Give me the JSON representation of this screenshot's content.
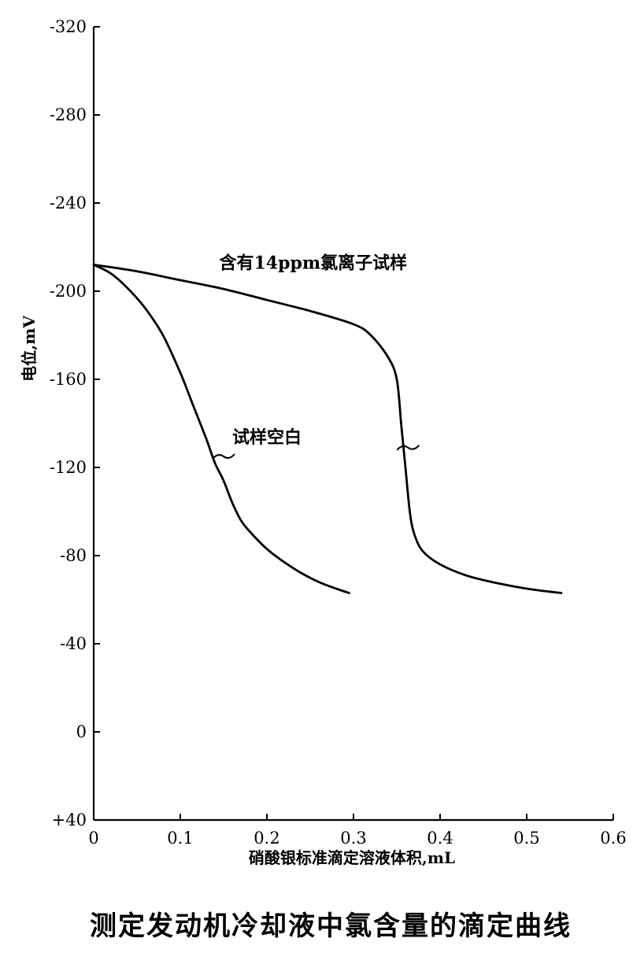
{
  "chart_data": {
    "type": "line",
    "title": "测定发动机冷却液中氯含量的滴定曲线",
    "xlabel": "硝酸银标准滴定溶液体积,mL",
    "ylabel": "电位,mV",
    "xlim": [
      0,
      0.6
    ],
    "ylim": [
      40,
      -320
    ],
    "y_axis_inverted": true,
    "grid": false,
    "x_ticks": [
      {
        "value": 0,
        "label": "0"
      },
      {
        "value": 0.1,
        "label": "0.1"
      },
      {
        "value": 0.2,
        "label": "0.2"
      },
      {
        "value": 0.3,
        "label": "0.3"
      },
      {
        "value": 0.4,
        "label": "0.4"
      },
      {
        "value": 0.5,
        "label": "0.5"
      },
      {
        "value": 0.6,
        "label": "0.6"
      }
    ],
    "y_ticks": [
      {
        "value": -320,
        "label": "-320"
      },
      {
        "value": -280,
        "label": "-280"
      },
      {
        "value": -240,
        "label": "-240"
      },
      {
        "value": -200,
        "label": "-200"
      },
      {
        "value": -160,
        "label": "-160"
      },
      {
        "value": -120,
        "label": "-120"
      },
      {
        "value": -80,
        "label": "-80"
      },
      {
        "value": -40,
        "label": "-40"
      },
      {
        "value": 0,
        "label": "0"
      },
      {
        "value": 40,
        "label": "+40"
      }
    ],
    "series": [
      {
        "name": "试样空白",
        "x": [
          0,
          0.02,
          0.04,
          0.06,
          0.08,
          0.1,
          0.115,
          0.13,
          0.14,
          0.15,
          0.16,
          0.17,
          0.18,
          0.2,
          0.22,
          0.24,
          0.26,
          0.28,
          0.295
        ],
        "y": [
          -212,
          -208,
          -201,
          -192,
          -180,
          -163,
          -148,
          -133,
          -122,
          -114,
          -104,
          -96,
          -91,
          -83,
          -77,
          -72,
          -68,
          -65,
          -63
        ]
      },
      {
        "name": "含有14ppm氯离子试样",
        "x": [
          0,
          0.05,
          0.1,
          0.15,
          0.2,
          0.25,
          0.3,
          0.32,
          0.34,
          0.35,
          0.355,
          0.36,
          0.365,
          0.37,
          0.38,
          0.4,
          0.43,
          0.46,
          0.5,
          0.54
        ],
        "y": [
          -212,
          -209,
          -205,
          -201,
          -196,
          -191,
          -185,
          -180,
          -170,
          -160,
          -140,
          -120,
          -100,
          -90,
          -82,
          -76,
          -71,
          -68,
          -65,
          -63
        ]
      }
    ],
    "annotations": [
      {
        "text": "含有14ppm氯离子试样",
        "x": 0.145,
        "y": -213
      },
      {
        "text": "试样空白",
        "x": 0.16,
        "y": -134
      }
    ]
  }
}
